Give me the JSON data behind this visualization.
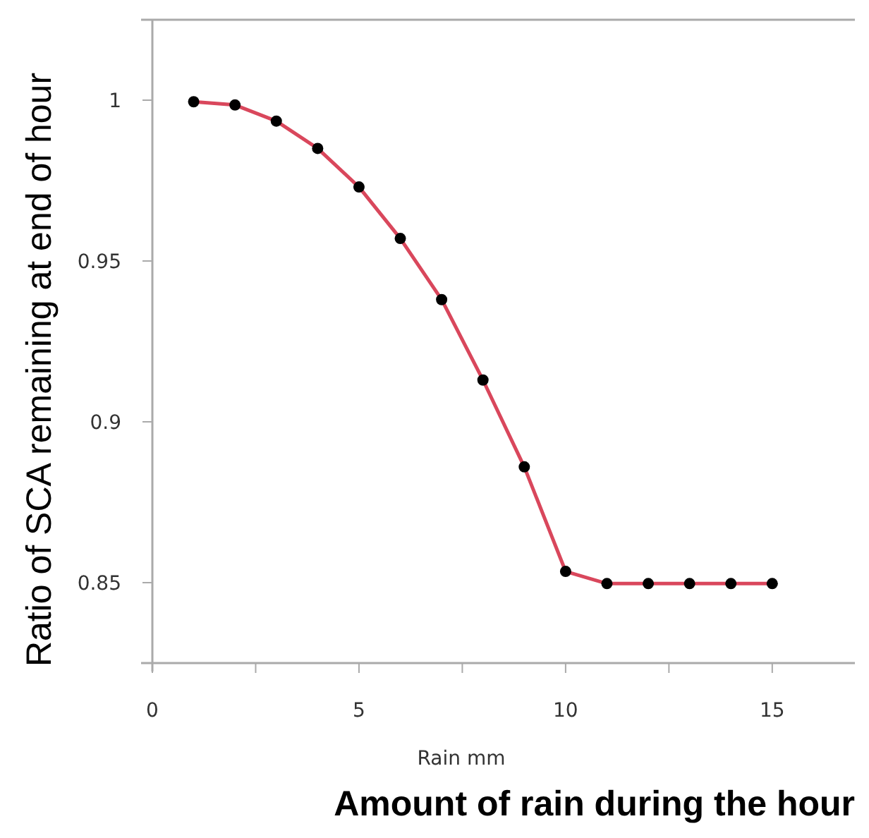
{
  "chart_data": {
    "type": "line",
    "xlabel": "Rain mm",
    "ylabel": "Ratio of SCA remaining at end of hour",
    "annotations": [
      "Amount of rain during the hour"
    ],
    "x": [
      1,
      2,
      3,
      4,
      5,
      6,
      7,
      8,
      9,
      10,
      11,
      12,
      13,
      14,
      15
    ],
    "series": [
      {
        "color": "#d9475c",
        "values": [
          0.9995,
          0.9985,
          0.9935,
          0.985,
          0.973,
          0.957,
          0.938,
          0.913,
          0.886,
          0.8535,
          0.8497,
          0.8497,
          0.8497,
          0.8497,
          0.8497
        ]
      }
    ],
    "xlim": [
      0,
      17
    ],
    "xticks": [
      0,
      {
        "value": 2.5,
        "label": null
      },
      5,
      {
        "value": 7.5,
        "label": null
      },
      10,
      {
        "value": 12.5,
        "label": null
      },
      15
    ],
    "ylim": [
      0.825,
      1.025
    ],
    "yticks": [
      0.85,
      0.9,
      0.95,
      1
    ],
    "grid": false,
    "marker": "circle",
    "line_style": "solid"
  }
}
